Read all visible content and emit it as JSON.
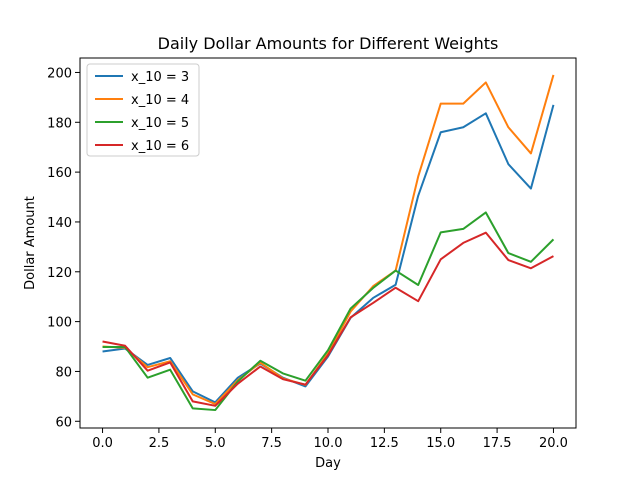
{
  "chart_data": {
    "type": "line",
    "title": "Daily Dollar Amounts for Different Weights",
    "xlabel": "Day",
    "ylabel": "Dollar Amount",
    "x": [
      0,
      1,
      2,
      3,
      4,
      5,
      6,
      7,
      8,
      9,
      10,
      11,
      12,
      13,
      14,
      15,
      16,
      17,
      18,
      19,
      20
    ],
    "xlim": [
      -1,
      21
    ],
    "ylim": [
      57.3,
      205.8
    ],
    "xticks": [
      0.0,
      2.5,
      5.0,
      7.5,
      10.0,
      12.5,
      15.0,
      17.5,
      20.0
    ],
    "xtick_labels": [
      "0.0",
      "2.5",
      "5.0",
      "7.5",
      "10.0",
      "12.5",
      "15.0",
      "17.5",
      "20.0"
    ],
    "yticks": [
      60,
      80,
      100,
      120,
      140,
      160,
      180,
      200
    ],
    "ytick_labels": [
      "60",
      "80",
      "100",
      "120",
      "140",
      "160",
      "180",
      "200"
    ],
    "grid": false,
    "legend_position": "top-left",
    "series": [
      {
        "name": "x_10 = 3",
        "color": "#1f77b4",
        "values": [
          88,
          89.2,
          82.6,
          85.4,
          72,
          67.6,
          77.5,
          83.2,
          77.5,
          74,
          86,
          101.5,
          109.5,
          114.8,
          150.5,
          176,
          178,
          183.6,
          163.2,
          153.4,
          187
        ]
      },
      {
        "name": "x_10 = 4",
        "color": "#ff7f0e",
        "values": [
          90,
          89.5,
          81.7,
          84.1,
          70.8,
          66.9,
          76.5,
          83.5,
          77.2,
          74.6,
          87.2,
          104,
          114.2,
          120.5,
          158.2,
          187.5,
          187.5,
          196,
          178,
          167.5,
          199
        ]
      },
      {
        "name": "x_10 = 5",
        "color": "#2ca02c",
        "values": [
          89.8,
          89.8,
          77.5,
          80.7,
          65.2,
          64.5,
          76,
          84.3,
          79.2,
          76.3,
          88.5,
          105.2,
          113.5,
          120.5,
          114.7,
          135.8,
          137.2,
          143.8,
          127.5,
          124,
          133
        ]
      },
      {
        "name": "x_10 = 6",
        "color": "#d62728",
        "values": [
          92,
          90.3,
          80.3,
          83.6,
          68,
          66.2,
          75.1,
          82,
          76.9,
          74.7,
          86.5,
          101.7,
          107.5,
          113.6,
          108.2,
          125,
          131.6,
          135.7,
          124.7,
          121.4,
          126.3
        ]
      }
    ]
  }
}
